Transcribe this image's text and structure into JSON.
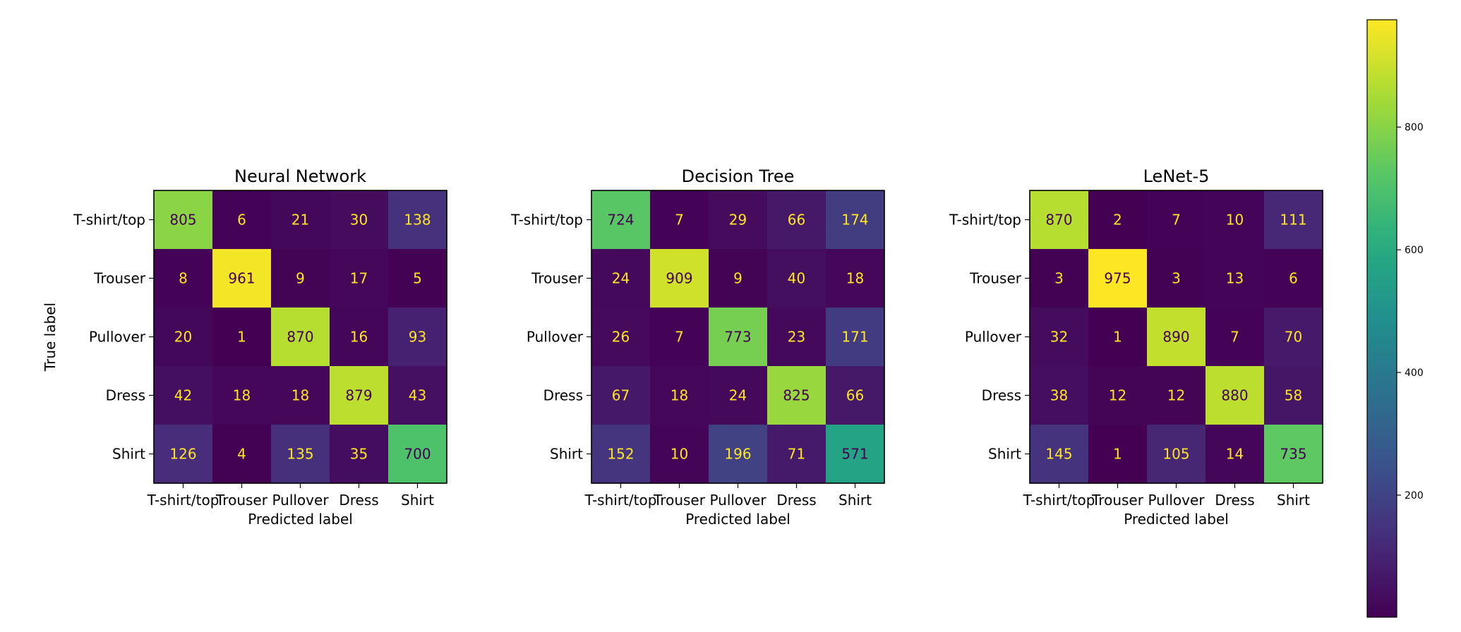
{
  "chart_data": [
    {
      "type": "heatmap",
      "title": "Neural Network",
      "xlabel": "Predicted label",
      "ylabel": "True label",
      "x_categories": [
        "T-shirt/top",
        "Trouser",
        "Pullover",
        "Dress",
        "Shirt"
      ],
      "y_categories": [
        "T-shirt/top",
        "Trouser",
        "Pullover",
        "Dress",
        "Shirt"
      ],
      "values": [
        [
          805,
          6,
          21,
          30,
          138
        ],
        [
          8,
          961,
          9,
          17,
          5
        ],
        [
          20,
          1,
          870,
          16,
          93
        ],
        [
          42,
          18,
          18,
          879,
          43
        ],
        [
          126,
          4,
          135,
          35,
          700
        ]
      ]
    },
    {
      "type": "heatmap",
      "title": "Decision Tree",
      "xlabel": "Predicted label",
      "ylabel": "",
      "x_categories": [
        "T-shirt/top",
        "Trouser",
        "Pullover",
        "Dress",
        "Shirt"
      ],
      "y_categories": [
        "T-shirt/top",
        "Trouser",
        "Pullover",
        "Dress",
        "Shirt"
      ],
      "values": [
        [
          724,
          7,
          29,
          66,
          174
        ],
        [
          24,
          909,
          9,
          40,
          18
        ],
        [
          26,
          7,
          773,
          23,
          171
        ],
        [
          67,
          18,
          24,
          825,
          66
        ],
        [
          152,
          10,
          196,
          71,
          571
        ]
      ]
    },
    {
      "type": "heatmap",
      "title": "LeNet-5",
      "xlabel": "Predicted label",
      "ylabel": "",
      "x_categories": [
        "T-shirt/top",
        "Trouser",
        "Pullover",
        "Dress",
        "Shirt"
      ],
      "y_categories": [
        "T-shirt/top",
        "Trouser",
        "Pullover",
        "Dress",
        "Shirt"
      ],
      "values": [
        [
          870,
          2,
          7,
          10,
          111
        ],
        [
          3,
          975,
          3,
          13,
          6
        ],
        [
          32,
          1,
          890,
          7,
          70
        ],
        [
          38,
          12,
          12,
          880,
          58
        ],
        [
          145,
          1,
          105,
          14,
          735
        ]
      ]
    }
  ],
  "colorbar": {
    "colormap": "viridis",
    "range": [
      1,
      975
    ],
    "ticks": [
      200,
      400,
      600,
      800
    ]
  }
}
